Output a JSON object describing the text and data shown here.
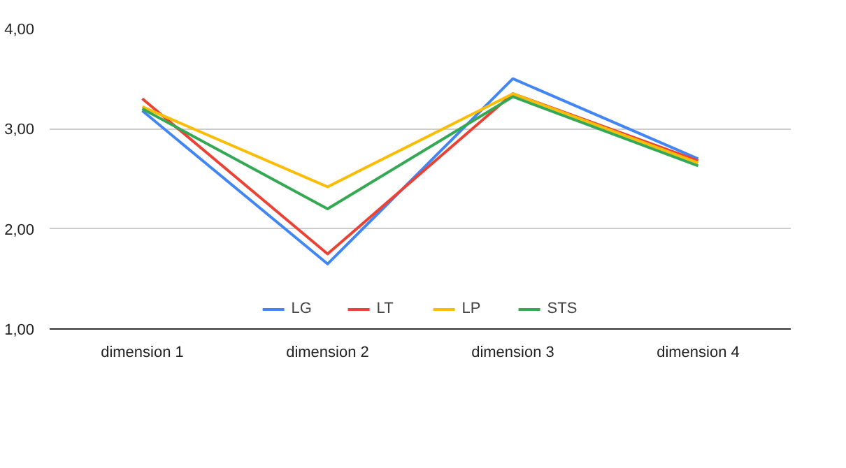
{
  "chart_data": {
    "type": "line",
    "categories": [
      "dimension 1",
      "dimension 2",
      "dimension 3",
      "dimension 4"
    ],
    "series": [
      {
        "name": "LG",
        "color": "#4285f4",
        "values": [
          3.18,
          1.65,
          3.5,
          2.7
        ]
      },
      {
        "name": "LT",
        "color": "#ea4335",
        "values": [
          3.3,
          1.75,
          3.35,
          2.68
        ]
      },
      {
        "name": "LP",
        "color": "#fbbc04",
        "values": [
          3.22,
          2.42,
          3.35,
          2.66
        ]
      },
      {
        "name": "STS",
        "color": "#34a853",
        "values": [
          3.2,
          2.2,
          3.32,
          2.63
        ]
      }
    ],
    "ylim": [
      1,
      4
    ],
    "yticks": [
      {
        "value": 1,
        "label": "1,00"
      },
      {
        "value": 2,
        "label": "2,00"
      },
      {
        "value": 3,
        "label": "3,00"
      },
      {
        "value": 4,
        "label": "4,00"
      }
    ],
    "grid": "y",
    "legend": "bottom",
    "marker": "none",
    "line_style": "solid"
  }
}
